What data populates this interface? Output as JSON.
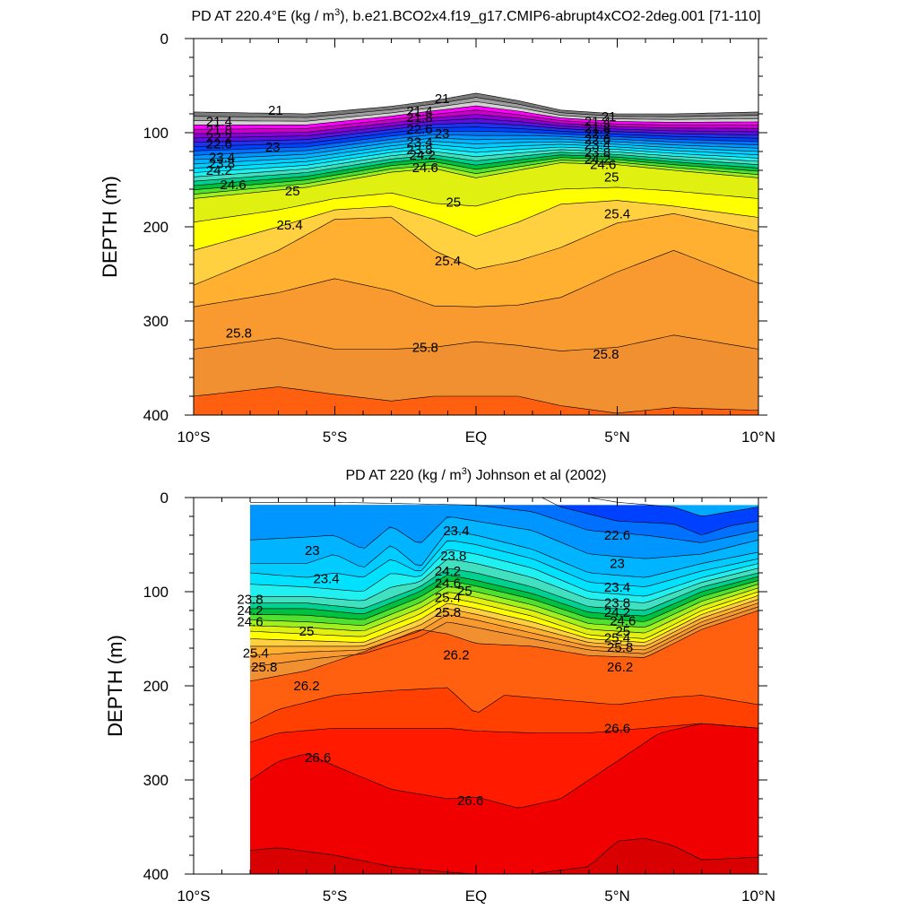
{
  "chart_data": [
    {
      "type": "contour",
      "title_prefix": "PD AT 220.4°E (kg / m",
      "title_sup": "3",
      "title_suffix": "), b.e21.BCO2x4.f19_g17.CMIP6-abrupt4xCO2-2deg.001 [71-110]",
      "ylabel": "DEPTH (m)",
      "x_tick_labels": [
        "10°S",
        "5°S",
        "EQ",
        "5°N",
        "10°N"
      ],
      "x_tick_values": [
        -10,
        -5,
        0,
        5,
        10
      ],
      "y_tick_labels": [
        "0",
        "100",
        "200",
        "300",
        "400"
      ],
      "y_tick_values": [
        0,
        100,
        200,
        300,
        400
      ],
      "xlim": [
        -10,
        10
      ],
      "ylim": [
        0,
        400
      ],
      "contour_interval": 0.2,
      "contour_labels": [
        {
          "text": "21",
          "x": -7.1,
          "d": 76
        },
        {
          "text": "21.4",
          "x": -9.1,
          "d": 88
        },
        {
          "text": "21.8",
          "x": -9.1,
          "d": 97
        },
        {
          "text": "22.2",
          "x": -9.1,
          "d": 105
        },
        {
          "text": "22.6",
          "x": -9.1,
          "d": 112
        },
        {
          "text": "23",
          "x": -7.2,
          "d": 115
        },
        {
          "text": "23.4",
          "x": -9.0,
          "d": 126
        },
        {
          "text": "23.8",
          "x": -9.0,
          "d": 133
        },
        {
          "text": "24.2",
          "x": -9.1,
          "d": 140
        },
        {
          "text": "24.6",
          "x": -8.6,
          "d": 155
        },
        {
          "text": "25",
          "x": -6.5,
          "d": 162
        },
        {
          "text": "25.4",
          "x": -6.6,
          "d": 198
        },
        {
          "text": "21",
          "x": -1.2,
          "d": 64
        },
        {
          "text": "21.4",
          "x": -2.0,
          "d": 77
        },
        {
          "text": "21.8",
          "x": -2.0,
          "d": 84
        },
        {
          "text": "22.6",
          "x": -2.0,
          "d": 96
        },
        {
          "text": "23",
          "x": -1.2,
          "d": 101
        },
        {
          "text": "23.4",
          "x": -2.0,
          "d": 110
        },
        {
          "text": "23.8",
          "x": -2.0,
          "d": 118
        },
        {
          "text": "24.2",
          "x": -1.9,
          "d": 124
        },
        {
          "text": "24.6",
          "x": -1.8,
          "d": 137
        },
        {
          "text": "25",
          "x": -0.8,
          "d": 174
        },
        {
          "text": "25.4",
          "x": -1.0,
          "d": 236
        },
        {
          "text": "25.8",
          "x": -1.8,
          "d": 328
        },
        {
          "text": "21",
          "x": 4.7,
          "d": 83
        },
        {
          "text": "21.4",
          "x": 4.3,
          "d": 88
        },
        {
          "text": "21.8",
          "x": 4.3,
          "d": 95
        },
        {
          "text": "22.2",
          "x": 4.3,
          "d": 101
        },
        {
          "text": "22.6",
          "x": 4.3,
          "d": 107
        },
        {
          "text": "23.4",
          "x": 4.3,
          "d": 113
        },
        {
          "text": "23.8",
          "x": 4.3,
          "d": 121
        },
        {
          "text": "24.2",
          "x": 4.3,
          "d": 128
        },
        {
          "text": "24.6",
          "x": 4.5,
          "d": 134
        },
        {
          "text": "25",
          "x": 4.8,
          "d": 147
        },
        {
          "text": "25.4",
          "x": 5.0,
          "d": 186
        },
        {
          "text": "25.8",
          "x": 4.6,
          "d": 335
        },
        {
          "text": "25.8",
          "x": -8.4,
          "d": 313
        }
      ]
    },
    {
      "type": "contour",
      "title_prefix": "PD AT 220 (kg / m",
      "title_sup": "3",
      "title_suffix": ") Johnson et al (2002)",
      "ylabel": "DEPTH (m)",
      "x_tick_labels": [
        "10°S",
        "5°S",
        "EQ",
        "5°N",
        "10°N"
      ],
      "x_tick_values": [
        -10,
        -5,
        0,
        5,
        10
      ],
      "y_tick_labels": [
        "0",
        "100",
        "200",
        "300",
        "400"
      ],
      "y_tick_values": [
        0,
        100,
        200,
        300,
        400
      ],
      "xlim": [
        -10,
        10
      ],
      "ylim": [
        0,
        400
      ],
      "data_x_range": [
        -8,
        10
      ],
      "data_depth_range": [
        8,
        400
      ],
      "contour_interval": 0.2,
      "contour_labels": [
        {
          "text": "23",
          "x": -5.8,
          "d": 56
        },
        {
          "text": "23.4",
          "x": -5.3,
          "d": 86
        },
        {
          "text": "23.4",
          "x": -0.7,
          "d": 35
        },
        {
          "text": "22.6",
          "x": 5.0,
          "d": 40
        },
        {
          "text": "23",
          "x": 5.0,
          "d": 70
        },
        {
          "text": "23.4",
          "x": 5.0,
          "d": 95
        },
        {
          "text": "23.8",
          "x": -8.0,
          "d": 108
        },
        {
          "text": "24.2",
          "x": -8.0,
          "d": 120
        },
        {
          "text": "24.6",
          "x": -8.0,
          "d": 132
        },
        {
          "text": "25",
          "x": -6.0,
          "d": 142
        },
        {
          "text": "25.4",
          "x": -7.8,
          "d": 165
        },
        {
          "text": "25.8",
          "x": -7.5,
          "d": 180
        },
        {
          "text": "26.2",
          "x": -6.0,
          "d": 200
        },
        {
          "text": "23.8",
          "x": -0.8,
          "d": 62
        },
        {
          "text": "24.2",
          "x": -1.0,
          "d": 78
        },
        {
          "text": "24.6",
          "x": -1.0,
          "d": 91
        },
        {
          "text": "25",
          "x": -0.4,
          "d": 99
        },
        {
          "text": "25.4",
          "x": -1.0,
          "d": 106
        },
        {
          "text": "25.8",
          "x": -1.0,
          "d": 122
        },
        {
          "text": "26.2",
          "x": -0.7,
          "d": 167
        },
        {
          "text": "23.8",
          "x": 5.0,
          "d": 112
        },
        {
          "text": "24.2",
          "x": 5.0,
          "d": 122
        },
        {
          "text": "24.6",
          "x": 5.2,
          "d": 131
        },
        {
          "text": "25",
          "x": 5.2,
          "d": 142
        },
        {
          "text": "25.4",
          "x": 5.0,
          "d": 149
        },
        {
          "text": "25.8",
          "x": 5.1,
          "d": 159
        },
        {
          "text": "26.2",
          "x": 5.1,
          "d": 180
        },
        {
          "text": "26.6",
          "x": -5.6,
          "d": 276
        },
        {
          "text": "26.6",
          "x": 5.0,
          "d": 245
        },
        {
          "text": "26.6",
          "x": -0.2,
          "d": 322
        }
      ]
    }
  ]
}
